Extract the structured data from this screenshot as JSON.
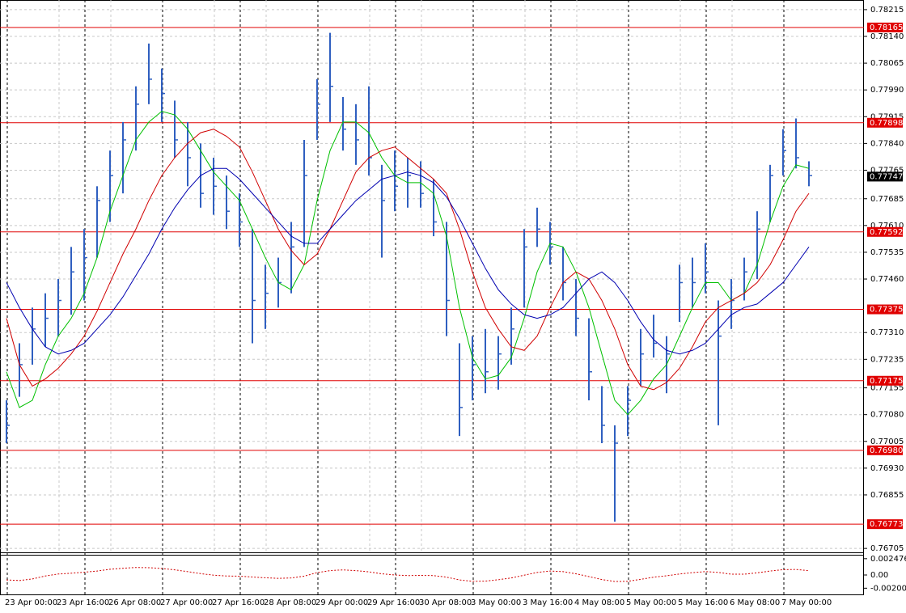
{
  "chart_data": [
    {
      "type": "ohlc",
      "categories": [
        "23 Apr 00:00",
        null,
        null,
        null,
        "23 Apr 16:00",
        null,
        null,
        null,
        "26 Apr 08:00",
        null,
        null,
        null,
        "27 Apr 00:00",
        null,
        null,
        null,
        "27 Apr 16:00",
        null,
        null,
        null,
        "28 Apr 08:00",
        null,
        null,
        null,
        "29 Apr 00:00",
        null,
        null,
        null,
        "29 Apr 16:00",
        null,
        null,
        null,
        "30 Apr 08:00",
        null,
        null,
        null,
        "3 May 00:00",
        null,
        null,
        null,
        "3 May 16:00",
        null,
        null,
        null,
        "4 May 08:00",
        null,
        null,
        null,
        "5 May 00:00",
        null,
        null,
        null,
        "5 May 16:00",
        null,
        null,
        null,
        "6 May 08:00",
        null,
        null,
        null,
        "7 May 00:00",
        null,
        null
      ],
      "color": "#2f5fc0",
      "high": [
        0.7712,
        0.7728,
        0.7738,
        0.7742,
        0.7746,
        0.7755,
        0.776,
        0.7772,
        0.7782,
        0.779,
        0.78,
        0.7812,
        0.7805,
        0.7796,
        0.779,
        0.7784,
        0.778,
        0.7775,
        0.777,
        0.776,
        0.775,
        0.7752,
        0.7762,
        0.7785,
        0.7802,
        0.7815,
        0.7797,
        0.7795,
        0.78,
        0.7778,
        0.7782,
        0.778,
        0.7779,
        0.7774,
        0.7762,
        0.7728,
        0.773,
        0.7732,
        0.773,
        0.7738,
        0.776,
        0.7766,
        0.7762,
        0.7755,
        0.7746,
        0.7735,
        0.7716,
        0.7705,
        0.7716,
        0.7732,
        0.7736,
        0.773,
        0.775,
        0.7752,
        0.7756,
        0.774,
        0.7746,
        0.7752,
        0.7765,
        0.7778,
        0.7788,
        0.7791,
        0.7779
      ],
      "low": [
        0.77,
        0.7713,
        0.7722,
        0.7727,
        0.773,
        0.7736,
        0.774,
        0.7752,
        0.7762,
        0.777,
        0.7782,
        0.7795,
        0.779,
        0.778,
        0.7772,
        0.7766,
        0.7764,
        0.776,
        0.7755,
        0.7728,
        0.7732,
        0.7738,
        0.7742,
        0.7755,
        0.7785,
        0.779,
        0.7782,
        0.7778,
        0.7775,
        0.7752,
        0.7765,
        0.7766,
        0.7766,
        0.7758,
        0.773,
        0.7702,
        0.7712,
        0.7714,
        0.7715,
        0.7722,
        0.7738,
        0.7755,
        0.775,
        0.774,
        0.773,
        0.7712,
        0.77,
        0.7678,
        0.7702,
        0.7716,
        0.7724,
        0.7714,
        0.7734,
        0.7738,
        0.7742,
        0.7705,
        0.7732,
        0.774,
        0.7746,
        0.7762,
        0.7775,
        0.7777,
        0.7772
      ],
      "close": [
        0.7705,
        0.7722,
        0.7732,
        0.7735,
        0.774,
        0.7748,
        0.7752,
        0.7768,
        0.7775,
        0.7785,
        0.7795,
        0.7802,
        0.7798,
        0.7785,
        0.778,
        0.777,
        0.7772,
        0.7765,
        0.7762,
        0.774,
        0.7742,
        0.7745,
        0.7755,
        0.7775,
        0.7795,
        0.78,
        0.7788,
        0.7785,
        0.778,
        0.7768,
        0.7772,
        0.7775,
        0.777,
        0.7762,
        0.774,
        0.771,
        0.7722,
        0.772,
        0.7725,
        0.7732,
        0.7755,
        0.776,
        0.7755,
        0.7745,
        0.7735,
        0.772,
        0.7705,
        0.77,
        0.7712,
        0.7725,
        0.7728,
        0.7725,
        0.7745,
        0.7745,
        0.7748,
        0.773,
        0.774,
        0.7748,
        0.776,
        0.7775,
        0.7782,
        0.778,
        0.7775
      ],
      "series": [
        {
          "color": "#00c000",
          "values": [
            0.772,
            0.771,
            0.7712,
            0.7722,
            0.773,
            0.7735,
            0.7742,
            0.7752,
            0.7765,
            0.7775,
            0.7785,
            0.779,
            0.7793,
            0.7792,
            0.7788,
            0.7782,
            0.7776,
            0.7772,
            0.7768,
            0.776,
            0.7752,
            0.7745,
            0.7743,
            0.775,
            0.7768,
            0.7782,
            0.779,
            0.779,
            0.7787,
            0.778,
            0.7775,
            0.7773,
            0.7773,
            0.777,
            0.7758,
            0.7738,
            0.7724,
            0.7718,
            0.7719,
            0.7724,
            0.7735,
            0.7748,
            0.7756,
            0.7755,
            0.7748,
            0.7738,
            0.7725,
            0.7712,
            0.7708,
            0.7712,
            0.7718,
            0.7722,
            0.773,
            0.7738,
            0.7745,
            0.7745,
            0.774,
            0.7742,
            0.775,
            0.7762,
            0.7772,
            0.7778,
            0.7777
          ]
        },
        {
          "color": "#d00000",
          "values": [
            0.7735,
            0.7722,
            0.7716,
            0.7718,
            0.7721,
            0.7725,
            0.773,
            0.7737,
            0.7745,
            0.7753,
            0.776,
            0.7768,
            0.7775,
            0.778,
            0.7784,
            0.7787,
            0.7788,
            0.7786,
            0.7783,
            0.7776,
            0.7768,
            0.776,
            0.7754,
            0.775,
            0.7753,
            0.776,
            0.7768,
            0.7776,
            0.778,
            0.7782,
            0.7783,
            0.778,
            0.7777,
            0.7774,
            0.777,
            0.776,
            0.7748,
            0.7738,
            0.7732,
            0.7727,
            0.7726,
            0.773,
            0.7738,
            0.7745,
            0.7748,
            0.7746,
            0.774,
            0.7732,
            0.7722,
            0.7716,
            0.7715,
            0.7717,
            0.7721,
            0.7727,
            0.7734,
            0.7738,
            0.774,
            0.7742,
            0.7745,
            0.775,
            0.7757,
            0.7765,
            0.777
          ]
        },
        {
          "color": "#0000b0",
          "values": [
            0.7745,
            0.7738,
            0.7732,
            0.7727,
            0.7725,
            0.7726,
            0.7728,
            0.7732,
            0.7736,
            0.7741,
            0.7747,
            0.7753,
            0.776,
            0.7766,
            0.7771,
            0.7775,
            0.7777,
            0.7777,
            0.7774,
            0.777,
            0.7766,
            0.7762,
            0.7758,
            0.7756,
            0.7756,
            0.776,
            0.7764,
            0.7768,
            0.7771,
            0.7774,
            0.7775,
            0.7776,
            0.7775,
            0.7773,
            0.7769,
            0.7763,
            0.7756,
            0.7749,
            0.7743,
            0.7739,
            0.7736,
            0.7735,
            0.7736,
            0.7738,
            0.7742,
            0.7746,
            0.7748,
            0.7745,
            0.774,
            0.7734,
            0.7729,
            0.7726,
            0.7725,
            0.7726,
            0.7728,
            0.7732,
            0.7736,
            0.7738,
            0.7739,
            0.7742,
            0.7745,
            0.775,
            0.7755
          ]
        }
      ],
      "ylim": [
        0.76694,
        0.78242
      ],
      "yticks": [
        0.78215,
        {
          "value": 0.7814,
          "label": "0.78140"
        },
        0.78065,
        {
          "value": 0.7799,
          "label": "0.77990"
        },
        0.77915,
        {
          "value": 0.7784,
          "label": "0.77840"
        },
        0.77765,
        0.77685,
        {
          "value": 0.7761,
          "label": "0.77610"
        },
        0.77535,
        {
          "value": 0.7746,
          "label": "0.77460"
        },
        {
          "value": 0.7731,
          "label": "0.77310"
        },
        0.77235,
        0.77155,
        {
          "value": 0.7708,
          "label": "0.77080"
        },
        0.77005,
        {
          "value": 0.7693,
          "label": "0.76930"
        },
        0.76855,
        0.76705
      ],
      "levels": [
        0.78165,
        0.77898,
        0.77592,
        0.77375,
        0.77175,
        {
          "value": 0.7698,
          "label": "0.76980"
        },
        0.76773
      ],
      "level_color": "#e00000",
      "current_price": 0.77747,
      "grid": true
    },
    {
      "type": "oscillator",
      "color": "#d00000",
      "values": [
        -0.00075,
        -0.00084,
        -0.0006,
        -0.00015,
        0.00015,
        0.00027,
        0.00042,
        0.0006,
        0.00087,
        0.00102,
        0.00114,
        0.00111,
        0.00099,
        0.00078,
        0.00051,
        0.00021,
        -3e-05,
        -0.00015,
        -0.00018,
        -0.0003,
        -0.00042,
        -0.00051,
        -0.00045,
        -0.00018,
        0.00036,
        0.00066,
        0.00078,
        0.00066,
        0.00048,
        0.00018,
        0,
        -9e-05,
        -6e-05,
        -9e-05,
        -0.00033,
        -0.00075,
        -0.00096,
        -0.00093,
        -0.00072,
        -0.00045,
        -3e-05,
        0.00039,
        0.0006,
        0.00051,
        0.00018,
        -0.00024,
        -0.00069,
        -0.00099,
        -0.00096,
        -0.00066,
        -0.00033,
        -0.00012,
        0.00015,
        0.00036,
        0.00051,
        0.00039,
        0.00012,
        0.00012,
        0.00033,
        0.0006,
        0.00081,
        0.00084,
        0.00066
      ],
      "ylim": [
        -0.00307,
        0.00307
      ],
      "yticks": [
        0.002476,
        {
          "value": 0,
          "label": "0.00"
        },
        -0.002005
      ]
    }
  ]
}
